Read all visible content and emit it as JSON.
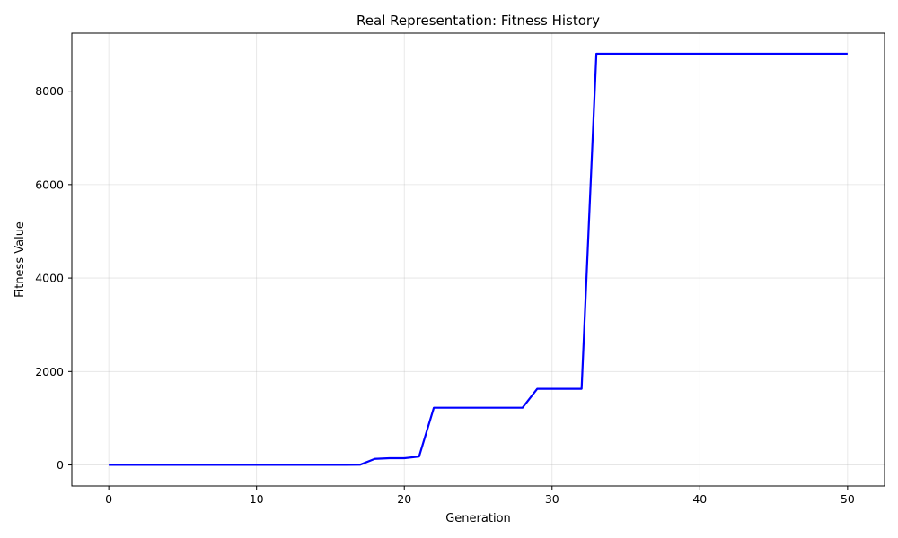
{
  "chart_data": {
    "type": "line",
    "title": "Real Representation: Fitness History",
    "xlabel": "Generation",
    "ylabel": "Fitness Value",
    "xlim": [
      -2.5,
      52.5
    ],
    "ylim": [
      -450,
      9240
    ],
    "xticks": [
      0,
      10,
      20,
      30,
      40,
      50
    ],
    "yticks": [
      0,
      2000,
      4000,
      6000,
      8000
    ],
    "grid": true,
    "legend": "none",
    "series": [
      {
        "color": "#0000ff",
        "x": [
          0,
          1,
          2,
          3,
          4,
          5,
          6,
          7,
          8,
          9,
          10,
          11,
          12,
          13,
          14,
          15,
          16,
          17,
          18,
          19,
          20,
          21,
          22,
          23,
          24,
          25,
          26,
          27,
          28,
          29,
          30,
          31,
          32,
          33,
          34,
          35,
          36,
          37,
          38,
          39,
          40,
          41,
          42,
          43,
          44,
          45,
          46,
          47,
          48,
          49,
          50
        ],
        "y": [
          2,
          2,
          2,
          2,
          2,
          2,
          2,
          2,
          2,
          2,
          2,
          2,
          2,
          2,
          2,
          3,
          4,
          5,
          130,
          145,
          145,
          180,
          1225,
          1225,
          1225,
          1225,
          1225,
          1225,
          1225,
          1630,
          1630,
          1630,
          1630,
          8800,
          8800,
          8800,
          8800,
          8800,
          8800,
          8800,
          8800,
          8800,
          8800,
          8800,
          8800,
          8800,
          8800,
          8800,
          8800,
          8800,
          8800
        ]
      }
    ]
  }
}
